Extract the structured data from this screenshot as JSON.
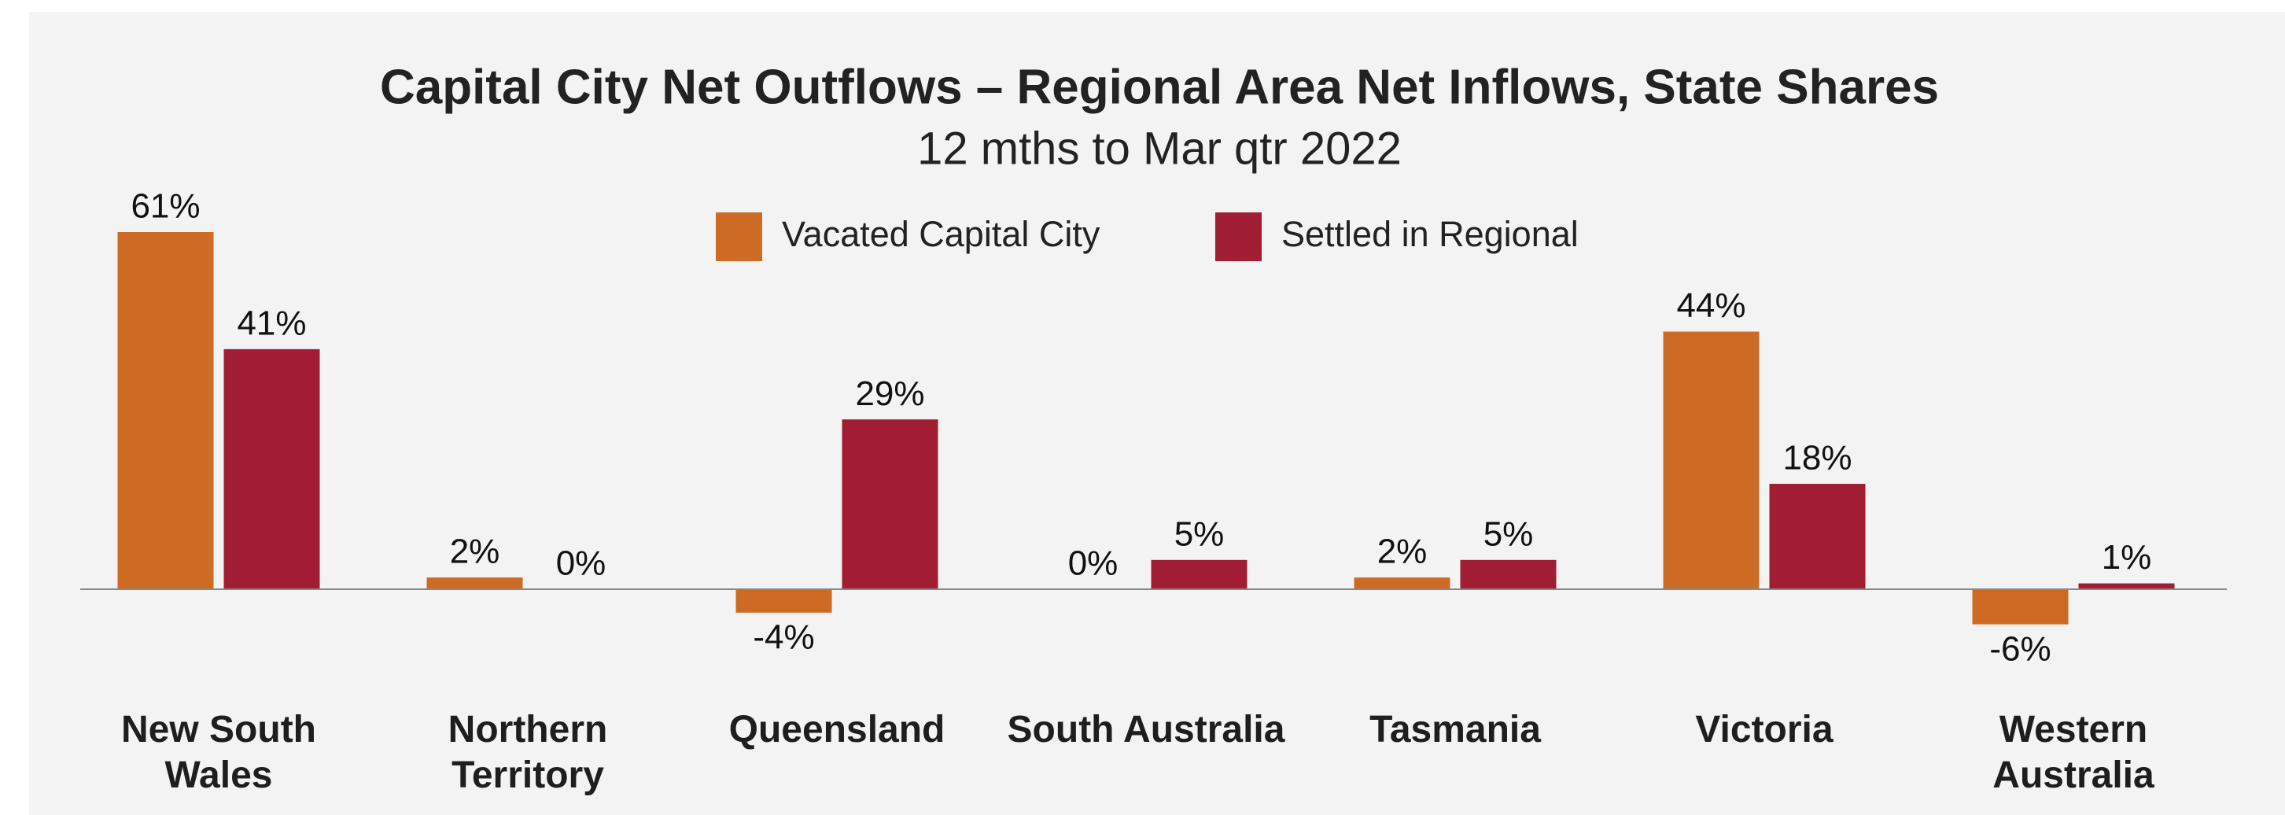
{
  "chart_data": {
    "type": "bar",
    "title": "Capital City Net Outflows – Regional Area Net Inflows, State Shares",
    "subtitle": "12 mths to Mar qtr 2022",
    "categories": [
      "New South Wales",
      "Northern Territory",
      "Queensland",
      "South Australia",
      "Tasmania",
      "Victoria",
      "Western Australia"
    ],
    "series": [
      {
        "name": "Vacated Capital City",
        "color": "#cd6b25",
        "values": [
          61,
          2,
          -4,
          0,
          2,
          44,
          -6
        ],
        "value_labels": [
          "61%",
          "2%",
          "-4%",
          "0%",
          "2%",
          "44%",
          "-6%"
        ]
      },
      {
        "name": "Settled in Regional",
        "color": "#a11d33",
        "values": [
          41,
          0,
          29,
          5,
          5,
          18,
          1
        ],
        "value_labels": [
          "41%",
          "0%",
          "29%",
          "5%",
          "5%",
          "18%",
          "1%"
        ]
      }
    ],
    "legend": "top"
  }
}
